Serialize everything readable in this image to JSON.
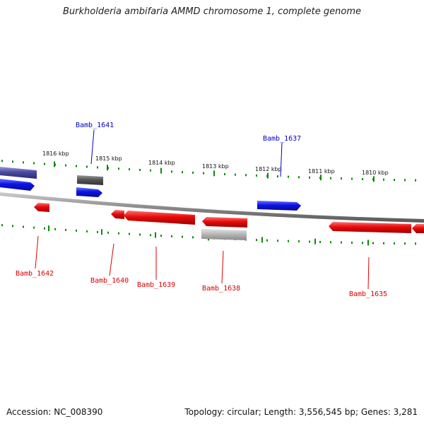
{
  "title": "Burkholderia ambifaria AMMD chromosome 1, complete genome",
  "footer": {
    "accession": "Accession: NC_008390",
    "summary": "Topology: circular; Length: 3,556,545 bp; Genes: 3,281"
  },
  "colors": {
    "forward_gene": "#0a14e6",
    "reverse_gene": "#e60a0a",
    "forward_label": "#0000c8",
    "reverse_label": "#dd0000",
    "rna_dark": "#555555",
    "rna_light": "#b8b8b8",
    "other": "#4a4aa0",
    "backbone": "#8a8a8a",
    "tick": "#0a8a0a"
  },
  "scale": {
    "unit": "kbp",
    "labels": [
      "1816 kbp",
      "1815 kbp",
      "1814 kbp",
      "1813 kbp",
      "1812 kbp",
      "1811 kbp",
      "1810 kbp"
    ]
  },
  "gene_labels": {
    "forward": [
      "Bamb_1641",
      "Bamb_1637"
    ],
    "reverse": [
      "Bamb_1642",
      "Bamb_1640",
      "Bamb_1639",
      "Bamb_1638",
      "Bamb_1635"
    ]
  }
}
